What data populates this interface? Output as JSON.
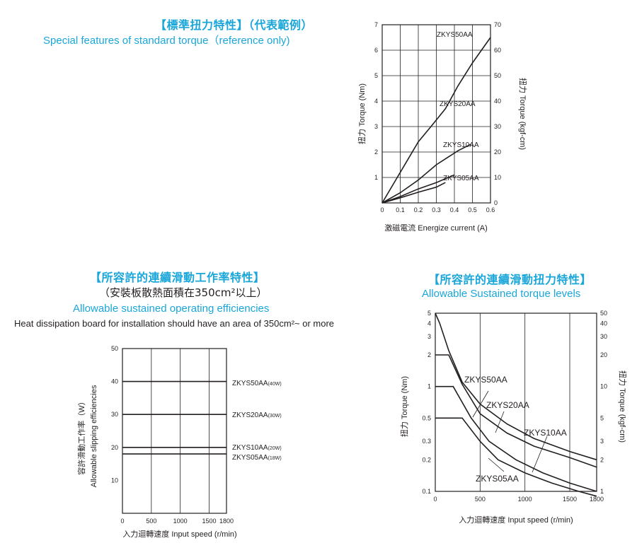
{
  "headings": {
    "c1_cn": "【標準扭力特性】（代表範例）",
    "c1_en": "Special features of standard torque（reference only)",
    "c2_cn": "【所容許的連續滑動工作率特性】",
    "c2_cn_sub": "（安裝板散熱面積在350cm²以上）",
    "c2_en": "Allowable sustained operating efficiencies",
    "c2_note": "Heat dissipation board for installation should have an area of 350cm²~ or more",
    "c3_cn": "【所容許的連續滑動扭力特性】",
    "c3_en": "Allowable Sustained torque levels"
  },
  "chart_data": [
    {
      "id": "standard_torque",
      "type": "line",
      "xlabel": "激磁電流 Energize current (A)",
      "ylabel": "扭力 Torque (Nm)",
      "ylabel_right": "扭力 Torque (kgf-cm)",
      "xlim": [
        0,
        0.6
      ],
      "ylim": [
        0,
        7
      ],
      "ylim_right": [
        0,
        70
      ],
      "x_ticks": [
        "0",
        "0.1",
        "0.2",
        "0.3",
        "0.4",
        "0.5",
        "0.6"
      ],
      "y_ticks": [
        "1",
        "2",
        "3",
        "4",
        "5",
        "6",
        "7"
      ],
      "y_ticks_right": [
        "0",
        "10",
        "20",
        "30",
        "40",
        "50",
        "60",
        "70"
      ],
      "series": [
        {
          "name": "ZKYS50AA",
          "x": [
            0,
            0.1,
            0.2,
            0.27,
            0.35,
            0.42,
            0.5,
            0.6
          ],
          "y": [
            0,
            1.2,
            2.4,
            3.0,
            3.7,
            4.6,
            5.5,
            6.5
          ]
        },
        {
          "name": "ZKYS20AA",
          "x": [
            0,
            0.1,
            0.2,
            0.3,
            0.42,
            0.49
          ],
          "y": [
            0,
            0.4,
            0.9,
            1.5,
            2.05,
            2.3
          ]
        },
        {
          "name": "ZKYS10AA",
          "x": [
            0,
            0.1,
            0.2,
            0.3,
            0.4
          ],
          "y": [
            0,
            0.25,
            0.55,
            0.8,
            1.1
          ]
        },
        {
          "name": "ZKYS05AA",
          "x": [
            0,
            0.1,
            0.2,
            0.3,
            0.35
          ],
          "y": [
            0,
            0.2,
            0.42,
            0.62,
            0.8
          ]
        }
      ]
    },
    {
      "id": "sustained_efficiency",
      "type": "line",
      "xlabel": "入力迴轉速度 Input speed (r/min)",
      "ylabel": "容許滑動工作率（W）",
      "ylabel2": "Allowable slipping efficiencies",
      "xlim": [
        0,
        1800
      ],
      "ylim": [
        0,
        50
      ],
      "x_ticks": [
        "0",
        "500",
        "1000",
        "1500",
        "1800"
      ],
      "y_ticks": [
        "10",
        "20",
        "30",
        "40",
        "50"
      ],
      "series": [
        {
          "name": "ZKYS50AA",
          "unit_label": "(40W)",
          "x": [
            0,
            1800
          ],
          "y": [
            40,
            40
          ]
        },
        {
          "name": "ZKYS20AA",
          "unit_label": "(30W)",
          "x": [
            0,
            1800
          ],
          "y": [
            30,
            30
          ]
        },
        {
          "name": "ZKYS10AA",
          "unit_label": "(20W)",
          "x": [
            0,
            1800
          ],
          "y": [
            20,
            20
          ]
        },
        {
          "name": "ZKYS05AA",
          "unit_label": "(18W)",
          "x": [
            0,
            1800
          ],
          "y": [
            18,
            18
          ]
        }
      ]
    },
    {
      "id": "sustained_torque",
      "type": "line",
      "yscale": "log",
      "xlabel": "入力迴轉速度 Input speed (r/min)",
      "ylabel": "扭力 Torque (Nm)",
      "ylabel_right": "扭力 Torque (kgf-cm)",
      "xlim": [
        0,
        1800
      ],
      "ylim": [
        0.1,
        5
      ],
      "ylim_right": [
        1,
        50
      ],
      "x_ticks": [
        "0",
        "500",
        "1000",
        "1500",
        "1800"
      ],
      "y_ticks": [
        "0.1",
        "0.2",
        "0.3",
        "0.5",
        "1",
        "2",
        "3",
        "4",
        "5"
      ],
      "y_ticks_right": [
        "1",
        "2",
        "3",
        "5",
        "10",
        "20",
        "30",
        "40",
        "50"
      ],
      "series": [
        {
          "name": "ZKYS50AA",
          "x": [
            0,
            50,
            150,
            300,
            500,
            800,
            1100,
            1500,
            1800
          ],
          "y": [
            5,
            4,
            2.2,
            1.1,
            0.68,
            0.44,
            0.32,
            0.24,
            0.2
          ]
        },
        {
          "name": "ZKYS20AA",
          "x": [
            0,
            150,
            300,
            500,
            800,
            1100,
            1500,
            1800
          ],
          "y": [
            2,
            2,
            1.05,
            0.55,
            0.36,
            0.27,
            0.21,
            0.17
          ]
        },
        {
          "name": "ZKYS10AA",
          "x": [
            0,
            200,
            400,
            600,
            900,
            1200,
            1500,
            1800
          ],
          "y": [
            1,
            1,
            0.5,
            0.3,
            0.2,
            0.15,
            0.12,
            0.1
          ]
        },
        {
          "name": "ZKYS05AA",
          "x": [
            0,
            300,
            500,
            700,
            1000,
            1300,
            1600,
            1800
          ],
          "y": [
            0.5,
            0.5,
            0.3,
            0.2,
            0.15,
            0.12,
            0.1,
            0.09
          ]
        }
      ]
    }
  ]
}
